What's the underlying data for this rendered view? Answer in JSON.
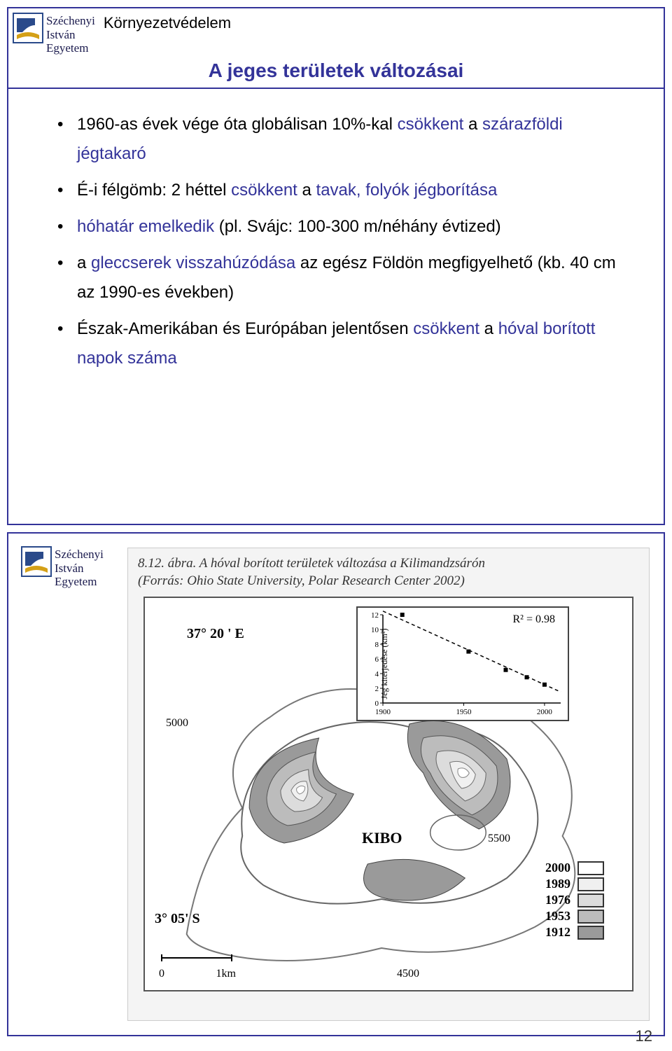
{
  "university": {
    "line1": "Széchenyi",
    "line2": "István",
    "line3": "Egyetem"
  },
  "course_name": "Környezetvédelem",
  "slide_title": "A jeges területek változásai",
  "bullets": [
    {
      "pre": "1960-as évek vége óta globálisan 10%-kal ",
      "hl1": "csökkent",
      "mid": " a ",
      "hl2": "szárazföldi jégtakaró",
      "post": ""
    },
    {
      "pre": "É-i félgömb: 2 héttel ",
      "hl1": "csökkent",
      "mid": " a ",
      "hl2": "tavak, folyók jégborítása",
      "post": ""
    },
    {
      "pre": "",
      "hl1": "hóhatár emelkedik",
      "mid": "",
      "hl2": "",
      "post": " (pl. Svájc: 100-300 m/néhány évtized)"
    },
    {
      "pre": "a ",
      "hl1": "gleccserek visszahúzódása",
      "mid": "",
      "hl2": "",
      "post": " az egész Földön megfigyelhető (kb. 40 cm az 1990-es években)"
    },
    {
      "pre": "Észak-Amerikában és Európában jelentősen ",
      "hl1": "csökkent",
      "mid": " a ",
      "hl2": "hóval borított napok száma",
      "post": ""
    }
  ],
  "figure": {
    "caption_line1": "8.12. ábra. A hóval borított területek változása a Kilimandzsárón",
    "caption_line2": "(Forrás: Ohio State University, Polar Research Center 2002)",
    "longitude": "37° 20 ' E",
    "latitude": "3° 05'  S",
    "peak_label": "KIBO",
    "contours": [
      "5000",
      "5500",
      "4500"
    ],
    "legend_years": [
      "2000",
      "1989",
      "1976",
      "1953",
      "1912"
    ],
    "legend_fills": [
      "#ffffff",
      "#f0f0f0",
      "#dcdcdc",
      "#bcbcbc",
      "#9a9a9a"
    ],
    "scalebar": {
      "left": "0",
      "right": "1km"
    },
    "inset_chart": {
      "r2": "R² = 0.98",
      "ylabel": "Jég kiterjedése (km²)",
      "yticks": [
        "0",
        "2",
        "4",
        "6",
        "8",
        "10",
        "12"
      ],
      "xticks": [
        "1900",
        "1950",
        "2000"
      ],
      "points": [
        {
          "x": 1912,
          "y": 12
        },
        {
          "x": 1953,
          "y": 7
        },
        {
          "x": 1976,
          "y": 4.5
        },
        {
          "x": 1989,
          "y": 3.5
        },
        {
          "x": 2000,
          "y": 2.5
        }
      ],
      "line": {
        "x1": 1900,
        "y1": 12.5,
        "x2": 2010,
        "y2": 1.5
      }
    }
  },
  "colors": {
    "accent": "#333399",
    "text": "#000000",
    "figure_bg": "#f4f4f4"
  },
  "page_number": "12",
  "logo": {
    "top_color": "#2a4a8a",
    "bottom_color": "#d4a017"
  }
}
